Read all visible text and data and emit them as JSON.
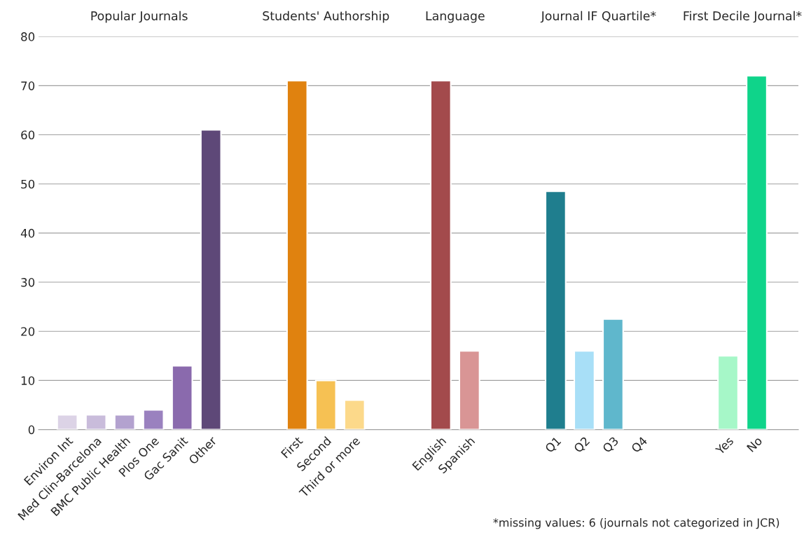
{
  "chart_data": {
    "type": "bar",
    "categories": [
      "Environ Int",
      "Med Clin-Barcelona",
      "BMC Public Health",
      "Plos One",
      "Gac Sanit",
      "Other",
      null,
      null,
      "First",
      "Second",
      "Third or more",
      null,
      null,
      "English",
      "Spanish",
      null,
      null,
      "Q1",
      "Q2",
      "Q3",
      "Q4",
      null,
      null,
      "Yes",
      "No"
    ],
    "values": [
      3,
      3,
      3,
      4,
      13,
      61,
      null,
      null,
      71,
      10,
      6,
      null,
      null,
      71,
      16,
      null,
      null,
      48.5,
      16,
      22.5,
      null,
      null,
      null,
      15,
      72
    ],
    "colors": [
      "#dcd3e6",
      "#c9bcdb",
      "#b3a2cf",
      "#9a81bf",
      "#8a6aad",
      "#5e4878",
      null,
      null,
      "#e0820f",
      "#f6c153",
      "#fcd98a",
      null,
      null,
      "#a34a4c",
      "#d99595",
      null,
      null,
      "#1f7e8e",
      "#a8dff7",
      "#5fb7cc",
      null,
      null,
      null,
      "#a6f7c8",
      "#0fd48a"
    ],
    "ylim": [
      0,
      80
    ],
    "yticks": [
      0,
      10,
      20,
      30,
      40,
      50,
      60,
      70,
      80
    ],
    "grid": "y",
    "annotations": [
      "Popular Journals",
      "Students' Authorship",
      "Language",
      "Journal IF Quartile*",
      "First Decile Journal*",
      "*missing values: 6 (journals not categorized in JCR)"
    ]
  }
}
